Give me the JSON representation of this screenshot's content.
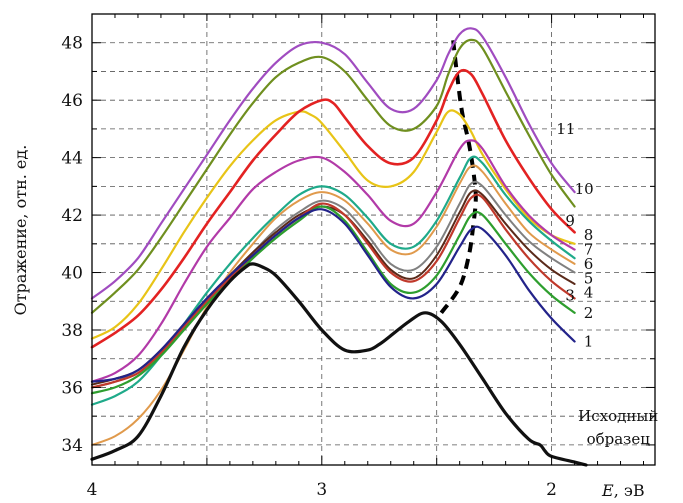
{
  "chart_data": {
    "type": "line",
    "title": "",
    "xlabel": "E, эВ",
    "ylabel": "Отражение, отн. ед.",
    "xlim": [
      4.0,
      1.55
    ],
    "ylim": [
      33.3,
      49.0
    ],
    "x_reversed": true,
    "grid": true,
    "grid_style": "dashed",
    "x_ticks": [
      4,
      3,
      2
    ],
    "x_tick_labels": [
      "4",
      "3",
      "2"
    ],
    "y_ticks": [
      34,
      36,
      38,
      40,
      42,
      44,
      46,
      48
    ],
    "y_tick_labels": [
      "34",
      "36",
      "38",
      "40",
      "42",
      "44",
      "46",
      "48"
    ],
    "series": [
      {
        "name": "Исходный образец",
        "color": "#111111",
        "width": 3.2,
        "x": [
          4.0,
          3.9,
          3.8,
          3.7,
          3.6,
          3.5,
          3.4,
          3.33,
          3.3,
          3.26,
          3.2,
          3.1,
          3.0,
          2.9,
          2.8,
          2.75,
          2.7,
          2.62,
          2.55,
          2.48,
          2.4,
          2.3,
          2.2,
          2.1,
          2.05,
          2.03,
          2.0,
          1.9,
          1.85
        ],
        "y": [
          33.5,
          33.8,
          34.3,
          35.7,
          37.4,
          38.7,
          39.7,
          40.2,
          40.3,
          40.2,
          39.9,
          39.0,
          38.0,
          37.3,
          37.3,
          37.5,
          37.8,
          38.3,
          38.6,
          38.3,
          37.5,
          36.3,
          35.1,
          34.2,
          34.0,
          33.8,
          33.6,
          33.4,
          33.3
        ]
      },
      {
        "name": "1",
        "color": "#23238a",
        "width": 2.2,
        "x": [
          4.0,
          3.9,
          3.8,
          3.7,
          3.6,
          3.5,
          3.4,
          3.3,
          3.2,
          3.1,
          3.0,
          2.9,
          2.8,
          2.7,
          2.6,
          2.5,
          2.4,
          2.35,
          2.3,
          2.2,
          2.1,
          2.0,
          1.9
        ],
        "y": [
          36.2,
          36.3,
          36.6,
          37.3,
          38.2,
          39.1,
          39.9,
          40.6,
          41.3,
          41.9,
          42.2,
          41.7,
          40.6,
          39.5,
          39.1,
          39.6,
          40.9,
          41.5,
          41.5,
          40.6,
          39.4,
          38.4,
          37.6
        ]
      },
      {
        "name": "2",
        "color": "#2e9e2e",
        "width": 2.2,
        "x": [
          4.0,
          3.9,
          3.8,
          3.7,
          3.6,
          3.5,
          3.4,
          3.3,
          3.2,
          3.1,
          3.0,
          2.9,
          2.8,
          2.7,
          2.6,
          2.5,
          2.4,
          2.35,
          2.3,
          2.2,
          2.1,
          2.0,
          1.9
        ],
        "y": [
          35.8,
          36.0,
          36.4,
          37.1,
          38.0,
          38.9,
          39.7,
          40.5,
          41.2,
          41.8,
          42.3,
          41.8,
          40.7,
          39.6,
          39.3,
          39.9,
          41.3,
          42.0,
          42.0,
          41.0,
          40.0,
          39.2,
          38.6
        ]
      },
      {
        "name": "3",
        "color": "#c0392b",
        "width": 2.2,
        "x": [
          4.0,
          3.9,
          3.8,
          3.7,
          3.6,
          3.5,
          3.4,
          3.3,
          3.2,
          3.1,
          3.0,
          2.9,
          2.8,
          2.7,
          2.6,
          2.5,
          2.4,
          2.35,
          2.3,
          2.2,
          2.1,
          2.0,
          1.9
        ],
        "y": [
          36.0,
          36.2,
          36.5,
          37.2,
          38.1,
          39.0,
          39.8,
          40.6,
          41.3,
          41.9,
          42.4,
          42.0,
          41.0,
          40.0,
          39.7,
          40.4,
          41.9,
          42.6,
          42.6,
          41.5,
          40.5,
          39.7,
          39.1
        ]
      },
      {
        "name": "4",
        "color": "#5a2a1a",
        "width": 2.0,
        "x": [
          4.0,
          3.9,
          3.8,
          3.7,
          3.6,
          3.5,
          3.4,
          3.3,
          3.2,
          3.1,
          3.0,
          2.9,
          2.8,
          2.7,
          2.6,
          2.5,
          2.4,
          2.35,
          2.3,
          2.2,
          2.1,
          2.0,
          1.9
        ],
        "y": [
          36.1,
          36.3,
          36.6,
          37.3,
          38.2,
          39.1,
          39.9,
          40.7,
          41.4,
          42.0,
          42.3,
          42.0,
          41.1,
          40.1,
          39.8,
          40.6,
          42.1,
          42.8,
          42.7,
          41.7,
          40.8,
          40.1,
          39.6
        ]
      },
      {
        "name": "5",
        "color": "#808080",
        "width": 2.0,
        "x": [
          4.0,
          3.9,
          3.8,
          3.7,
          3.6,
          3.5,
          3.4,
          3.3,
          3.2,
          3.1,
          3.0,
          2.9,
          2.8,
          2.7,
          2.6,
          2.5,
          2.4,
          2.35,
          2.3,
          2.2,
          2.1,
          2.0,
          1.9
        ],
        "y": [
          36.0,
          36.2,
          36.6,
          37.3,
          38.2,
          39.1,
          39.9,
          40.7,
          41.5,
          42.1,
          42.5,
          42.2,
          41.3,
          40.3,
          40.1,
          40.9,
          42.4,
          43.1,
          43.0,
          42.0,
          41.1,
          40.5,
          40.0
        ]
      },
      {
        "name": "6",
        "color": "#e09a4c",
        "width": 2.0,
        "x": [
          4.0,
          3.9,
          3.8,
          3.7,
          3.6,
          3.5,
          3.4,
          3.3,
          3.2,
          3.1,
          3.0,
          2.9,
          2.8,
          2.7,
          2.6,
          2.5,
          2.4,
          2.35,
          2.3,
          2.2,
          2.1,
          2.0,
          1.9
        ],
        "y": [
          34.0,
          34.3,
          34.9,
          35.9,
          37.3,
          38.8,
          40.0,
          41.0,
          41.9,
          42.5,
          42.8,
          42.5,
          41.7,
          40.8,
          40.7,
          41.6,
          43.1,
          43.7,
          43.5,
          42.4,
          41.4,
          40.8,
          40.3
        ]
      },
      {
        "name": "7",
        "color": "#1faa8a",
        "width": 2.2,
        "x": [
          4.0,
          3.9,
          3.8,
          3.7,
          3.6,
          3.5,
          3.4,
          3.3,
          3.2,
          3.1,
          3.0,
          2.9,
          2.8,
          2.7,
          2.6,
          2.5,
          2.4,
          2.35,
          2.3,
          2.2,
          2.1,
          2.0,
          1.9
        ],
        "y": [
          35.4,
          35.7,
          36.2,
          37.1,
          38.2,
          39.3,
          40.3,
          41.2,
          42.0,
          42.7,
          43.0,
          42.7,
          41.9,
          41.0,
          40.9,
          41.8,
          43.3,
          44.0,
          43.8,
          42.7,
          41.8,
          41.1,
          40.5
        ]
      },
      {
        "name": "8",
        "color": "#b23aa8",
        "width": 2.2,
        "x": [
          4.0,
          3.9,
          3.8,
          3.7,
          3.6,
          3.5,
          3.4,
          3.3,
          3.2,
          3.1,
          3.0,
          2.9,
          2.8,
          2.7,
          2.6,
          2.5,
          2.4,
          2.35,
          2.3,
          2.2,
          2.1,
          2.0,
          1.9
        ],
        "y": [
          36.2,
          36.5,
          37.1,
          38.2,
          39.6,
          40.9,
          41.9,
          42.9,
          43.5,
          43.9,
          44.0,
          43.5,
          42.7,
          41.8,
          41.7,
          42.8,
          44.3,
          44.6,
          44.3,
          43.0,
          42.0,
          41.3,
          40.8
        ]
      },
      {
        "name": "9",
        "color": "#e32222",
        "width": 2.6,
        "x": [
          4.0,
          3.9,
          3.8,
          3.7,
          3.6,
          3.5,
          3.4,
          3.3,
          3.2,
          3.1,
          3.0,
          2.95,
          2.9,
          2.8,
          2.7,
          2.6,
          2.5,
          2.45,
          2.4,
          2.35,
          2.3,
          2.2,
          2.1,
          2.0,
          1.9
        ],
        "y": [
          37.4,
          37.9,
          38.5,
          39.4,
          40.5,
          41.7,
          42.8,
          43.9,
          44.8,
          45.6,
          46.0,
          45.9,
          45.4,
          44.4,
          43.8,
          44.0,
          45.3,
          46.3,
          47.0,
          46.9,
          46.2,
          44.6,
          43.3,
          42.2,
          41.4
        ]
      },
      {
        "name": "",
        "color": "#e8c417",
        "width": 2.2,
        "x": [
          4.0,
          3.9,
          3.8,
          3.7,
          3.6,
          3.5,
          3.4,
          3.3,
          3.2,
          3.1,
          3.05,
          3.0,
          2.9,
          2.8,
          2.7,
          2.6,
          2.5,
          2.45,
          2.4,
          2.35,
          2.3,
          2.2,
          2.1,
          2.0,
          1.9
        ],
        "y": [
          37.7,
          38.1,
          38.9,
          40.1,
          41.4,
          42.6,
          43.7,
          44.6,
          45.3,
          45.6,
          45.5,
          45.2,
          44.2,
          43.2,
          43.0,
          43.5,
          44.9,
          45.6,
          45.5,
          44.9,
          44.1,
          42.9,
          41.9,
          41.3,
          41.0
        ]
      },
      {
        "name": "10",
        "color": "#6f8f1f",
        "width": 2.2,
        "x": [
          4.0,
          3.9,
          3.8,
          3.7,
          3.6,
          3.5,
          3.4,
          3.3,
          3.2,
          3.1,
          3.0,
          2.9,
          2.8,
          2.7,
          2.6,
          2.5,
          2.45,
          2.4,
          2.35,
          2.3,
          2.2,
          2.1,
          2.0,
          1.9
        ],
        "y": [
          38.6,
          39.3,
          40.1,
          41.2,
          42.4,
          43.6,
          44.8,
          45.9,
          46.8,
          47.3,
          47.5,
          47.0,
          46.0,
          45.1,
          45.0,
          45.8,
          46.9,
          47.8,
          48.1,
          47.8,
          46.3,
          44.8,
          43.4,
          42.3
        ]
      },
      {
        "name": "11",
        "color": "#a04cc0",
        "width": 2.2,
        "x": [
          4.0,
          3.9,
          3.8,
          3.7,
          3.6,
          3.5,
          3.4,
          3.3,
          3.2,
          3.1,
          3.0,
          2.9,
          2.8,
          2.7,
          2.6,
          2.5,
          2.45,
          2.4,
          2.35,
          2.3,
          2.2,
          2.1,
          2.0,
          1.9
        ],
        "y": [
          39.1,
          39.7,
          40.5,
          41.7,
          42.9,
          44.1,
          45.3,
          46.4,
          47.3,
          47.9,
          48.0,
          47.6,
          46.6,
          45.7,
          45.7,
          46.7,
          47.6,
          48.3,
          48.5,
          48.2,
          46.8,
          45.2,
          43.8,
          42.8
        ]
      },
      {
        "name": "",
        "color": "#000000",
        "width": 4.0,
        "dash": [
          10,
          7
        ],
        "x": [
          2.48,
          2.4,
          2.36,
          2.34,
          2.33,
          2.34,
          2.36,
          2.39,
          2.41,
          2.43
        ],
        "y": [
          38.6,
          39.5,
          40.6,
          41.7,
          42.6,
          43.5,
          44.5,
          45.6,
          46.8,
          48.2
        ]
      }
    ],
    "curve_labels": [
      {
        "text": "1",
        "x": 1.86,
        "y": 37.6
      },
      {
        "text": "2",
        "x": 1.86,
        "y": 38.6
      },
      {
        "text": "3",
        "x": 1.94,
        "y": 39.2
      },
      {
        "text": "4",
        "x": 1.86,
        "y": 39.3
      },
      {
        "text": "5",
        "x": 1.86,
        "y": 39.8
      },
      {
        "text": "6",
        "x": 1.86,
        "y": 40.3
      },
      {
        "text": "7",
        "x": 1.86,
        "y": 40.8
      },
      {
        "text": "8",
        "x": 1.86,
        "y": 41.3
      },
      {
        "text": "9",
        "x": 1.94,
        "y": 41.8
      },
      {
        "text": "10",
        "x": 1.9,
        "y": 42.9
      },
      {
        "text": "11",
        "x": 1.98,
        "y": 45.0
      }
    ],
    "annotations": [
      {
        "text": "Исходный",
        "x": 1.71,
        "y": 35.0
      },
      {
        "text": "образец",
        "x": 1.71,
        "y": 34.2
      }
    ]
  }
}
